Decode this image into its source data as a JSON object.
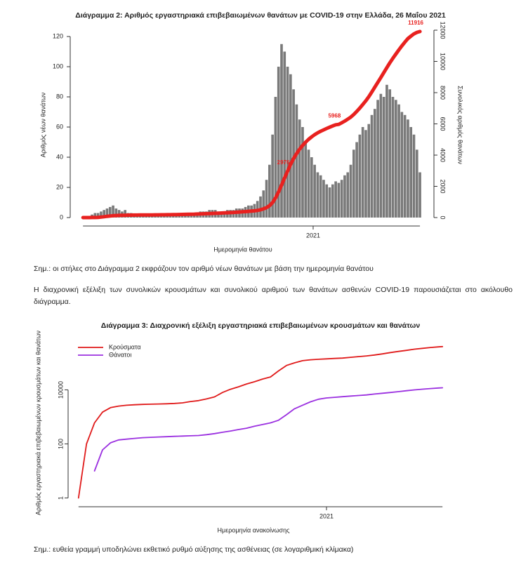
{
  "chart_data": [
    {
      "type": "bar",
      "title": "Διάγραμμα 2: Αριθμός εργαστηριακά επιβεβαιωμένων θανάτων με COVID-19 στην Ελλάδα, 26 Μαΐου 2021",
      "xlabel": "Ημερομηνία θανάτου",
      "ylabel": "Αριθμός νέων θανάτων",
      "y2label": "Συνολικός αριθμός θανάτων",
      "x": [
        0,
        4,
        8,
        12,
        16,
        20,
        24,
        28,
        32,
        36,
        40,
        44,
        48,
        52,
        56,
        60,
        64,
        68,
        72,
        76,
        80,
        84,
        88,
        92,
        96,
        100,
        104,
        108,
        112,
        116,
        120,
        124,
        128,
        132,
        136,
        140,
        144,
        148,
        152,
        156,
        160,
        164,
        168,
        172,
        176,
        180,
        184,
        188,
        192,
        196,
        200,
        204,
        208,
        212,
        216,
        220,
        224,
        228,
        232,
        236,
        240,
        244,
        248,
        252,
        256,
        260,
        264,
        268,
        272,
        276,
        280,
        284,
        288,
        292,
        296,
        300,
        304,
        308,
        312,
        316,
        320,
        324,
        328,
        332,
        336,
        340,
        344,
        348,
        352,
        356,
        360,
        364,
        368,
        372,
        376,
        380,
        384,
        388,
        392,
        396,
        400,
        404,
        408,
        412,
        416,
        420,
        424,
        428,
        432,
        436,
        440,
        444,
        448
      ],
      "series": [
        {
          "type": "bar",
          "color": "#7a7a7a",
          "values": [
            0,
            0,
            1,
            2,
            3,
            3,
            4,
            5,
            6,
            7,
            8,
            6,
            5,
            4,
            5,
            3,
            3,
            2,
            2,
            1,
            1,
            1,
            1,
            1,
            1,
            1,
            1,
            1,
            1,
            1,
            1,
            2,
            2,
            2,
            2,
            3,
            3,
            3,
            3,
            4,
            4,
            4,
            5,
            5,
            5,
            4,
            4,
            4,
            5,
            5,
            5,
            6,
            6,
            6,
            7,
            8,
            8,
            9,
            11,
            14,
            18,
            25,
            35,
            55,
            80,
            100,
            115,
            110,
            100,
            95,
            85,
            75,
            65,
            60,
            50,
            45,
            40,
            35,
            30,
            28,
            25,
            22,
            20,
            22,
            24,
            23,
            25,
            28,
            30,
            35,
            45,
            50,
            55,
            60,
            58,
            62,
            68,
            72,
            78,
            82,
            80,
            88,
            85,
            80,
            78,
            75,
            70,
            68,
            65,
            60,
            55,
            45,
            30
          ]
        },
        {
          "type": "line",
          "axis": "y2",
          "color": "#e8211f",
          "values": [
            0,
            0,
            1,
            3,
            6,
            15,
            30,
            55,
            80,
            100,
            120,
            130,
            140,
            145,
            150,
            155,
            158,
            160,
            162,
            164,
            166,
            168,
            170,
            172,
            174,
            176,
            178,
            180,
            182,
            185,
            188,
            192,
            196,
            200,
            205,
            210,
            216,
            222,
            228,
            235,
            242,
            250,
            258,
            266,
            275,
            283,
            291,
            300,
            310,
            320,
            330,
            342,
            355,
            368,
            382,
            398,
            414,
            432,
            460,
            500,
            560,
            640,
            760,
            960,
            1260,
            1640,
            2080,
            2540,
            2976,
            3400,
            3780,
            4100,
            4380,
            4620,
            4830,
            5010,
            5170,
            5310,
            5430,
            5530,
            5620,
            5710,
            5790,
            5870,
            5940,
            5968,
            6070,
            6180,
            6300,
            6430,
            6600,
            6800,
            7010,
            7240,
            7480,
            7740,
            8040,
            8350,
            8660,
            8970,
            9290,
            9600,
            9910,
            10200,
            10470,
            10740,
            11000,
            11240,
            11460,
            11620,
            11760,
            11860,
            11916
          ]
        }
      ],
      "annotations": [
        {
          "x": 272,
          "y": 2976,
          "text": "2976"
        },
        {
          "x": 340,
          "y": 5968,
          "text": "5968"
        },
        {
          "x": 448,
          "y": 11916,
          "text": "11916"
        }
      ],
      "xlim": [
        -17,
        461
      ],
      "xticks": [
        {
          "value": 306,
          "label": "2021"
        }
      ],
      "ylim": [
        -2.8,
        125.6
      ],
      "yticks": [
        0,
        20,
        40,
        60,
        80,
        100,
        120
      ],
      "y2lim": [
        -270,
        12135
      ],
      "y2ticks": [
        0,
        2000,
        4000,
        6000,
        8000,
        10000,
        12000
      ],
      "grid": false
    },
    {
      "type": "line",
      "title": "Διάγραμμα 3: Διαχρονική εξέλιξη εργαστηριακά επιβεβαιωμένων κρουσμάτων και θανάτων",
      "xlabel": "Ημερομηνία ανακοίνωσης",
      "ylabel": "Αριθμός εργαστηριακά επιβεβαιωμένων κρουσμάτων και θανάτων",
      "ylog": true,
      "legend": "upper-left",
      "grid": false,
      "x": [
        0,
        10,
        20,
        30,
        40,
        50,
        60,
        70,
        80,
        90,
        100,
        110,
        120,
        130,
        140,
        150,
        160,
        170,
        180,
        190,
        200,
        210,
        220,
        230,
        240,
        250,
        260,
        270,
        280,
        290,
        300,
        310,
        320,
        330,
        340,
        350,
        360,
        370,
        380,
        390,
        400,
        410,
        420,
        430,
        440,
        450,
        455
      ],
      "series": [
        {
          "name": "Κρούσματα",
          "color": "#e01a1a",
          "values": [
            1,
            100,
            600,
            1500,
            2200,
            2500,
            2700,
            2800,
            2900,
            2950,
            3000,
            3050,
            3150,
            3300,
            3700,
            4000,
            4600,
            5500,
            8000,
            10500,
            13000,
            16500,
            20000,
            25000,
            30000,
            50000,
            80000,
            100000,
            120000,
            130000,
            135000,
            140000,
            145000,
            150000,
            160000,
            170000,
            180000,
            195000,
            215000,
            240000,
            265000,
            290000,
            320000,
            345000,
            370000,
            390000,
            400000
          ]
        },
        {
          "name": "Θάνατοι",
          "color": "#9b30e0",
          "values": [
            null,
            null,
            10,
            60,
            110,
            140,
            150,
            160,
            170,
            175,
            180,
            185,
            190,
            195,
            200,
            205,
            220,
            240,
            270,
            300,
            340,
            380,
            450,
            520,
            600,
            750,
            1200,
            2000,
            2700,
            3600,
            4500,
            5000,
            5300,
            5600,
            5900,
            6200,
            6500,
            7000,
            7500,
            8000,
            8600,
            9300,
            10000,
            10600,
            11200,
            11700,
            11916
          ]
        }
      ],
      "xlim": [
        -13,
        468
      ],
      "xticks": [
        {
          "value": 310,
          "label": "2021"
        }
      ],
      "ylim": [
        0.6,
        600000
      ],
      "yticks": [
        1,
        100,
        10000
      ]
    }
  ],
  "notes": {
    "chart2_note": "Σημ.: οι στήλες στο Διάγραμμα 2 εκφράζουν τον αριθμό νέων θανάτων με βάση την ημερομηνία θανάτου",
    "paragraph": "Η διαχρονική εξέλιξη των συνολικών κρουσμάτων και συνολικού αριθμού των θανάτων ασθενών COVID-19 παρουσιάζεται στο ακόλουθο διάγραμμα.",
    "chart3_note": "Σημ.: ευθεία γραμμή υποδηλώνει εκθετικό ρυθμό αύξησης της ασθένειας (σε λογαριθμική κλίμακα)"
  }
}
